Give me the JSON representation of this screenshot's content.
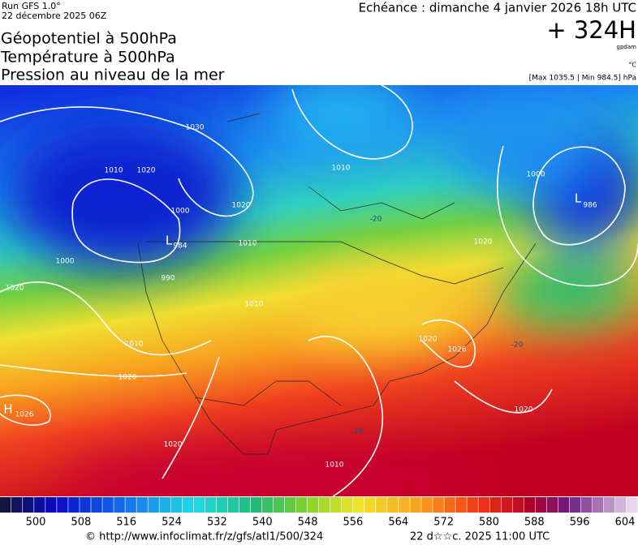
{
  "header": {
    "run": "Run GFS 1.0°",
    "date": "22 décembre 2025 06Z",
    "titles": [
      "Géopotentiel à 500hPa",
      "Température à 500hPa",
      "Pression au niveau de la mer"
    ]
  },
  "info": {
    "forecast": "Echéance : dimanche 4 janvier 2026 18h UTC",
    "lead": "+ 324H",
    "unit_gpdam": "gpdam",
    "unit_c": "°C",
    "extremes": "[Max 1035.5 | Min 984.5] hPa"
  },
  "map": {
    "contour_labels": [
      "1030",
      "1010",
      "1020",
      "1000",
      "1020",
      "1010",
      "L",
      "984",
      "990",
      "1010",
      "1010",
      "1000",
      "1020",
      "1010",
      "1020",
      "H",
      "1026",
      "1020",
      "1000",
      "L",
      "986",
      "1020",
      "1026",
      "1020",
      "1010",
      "1020",
      "-20",
      "-20",
      "-10"
    ]
  },
  "colorbar": {
    "labels": [
      500,
      508,
      516,
      524,
      532,
      540,
      548,
      556,
      564,
      572,
      580,
      588,
      596,
      604
    ]
  },
  "footer": {
    "url": "© http://www.infoclimat.fr/z/gfs/atl1/500/324",
    "timestamp": "22 d☆☆c. 2025 11:00 UTC"
  }
}
